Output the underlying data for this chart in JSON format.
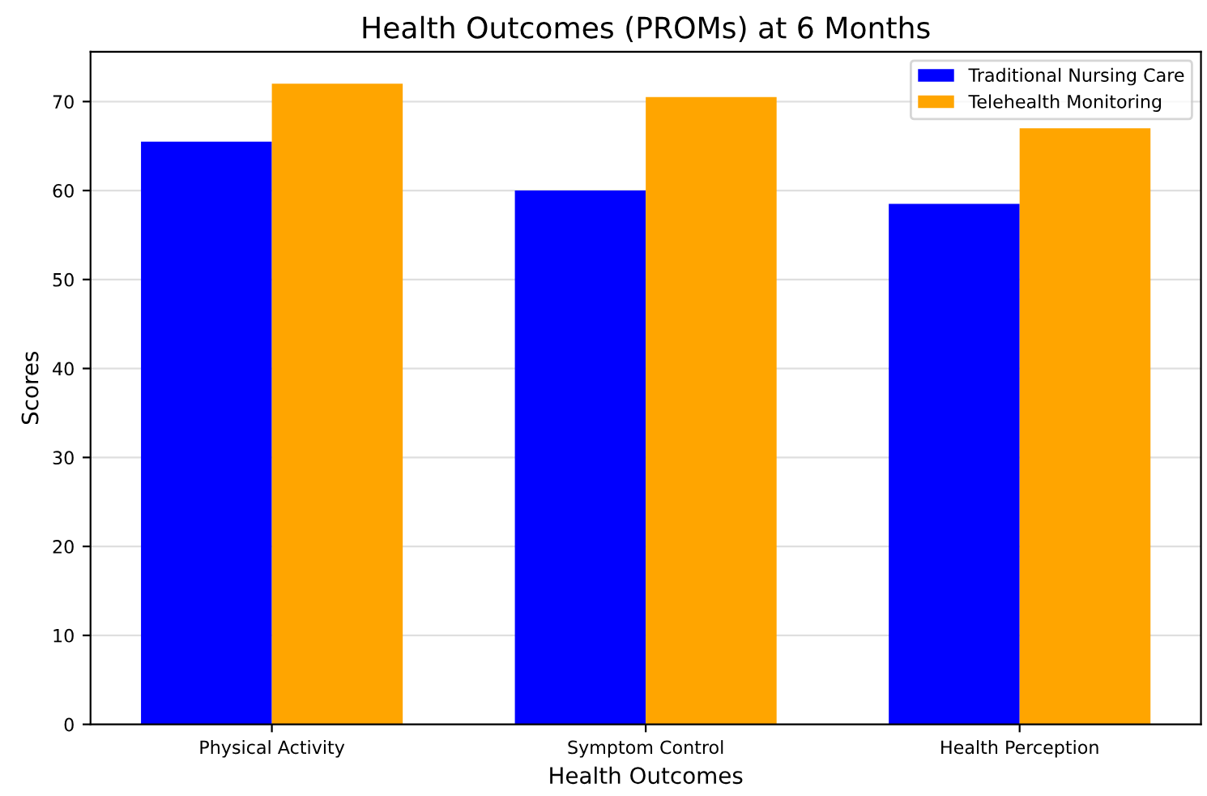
{
  "chart_data": {
    "type": "bar",
    "title": "Health Outcomes (PROMs) at 6 Months",
    "xlabel": "Health Outcomes",
    "ylabel": "Scores",
    "categories": [
      "Physical Activity",
      "Symptom Control",
      "Health Perception"
    ],
    "series": [
      {
        "name": "Traditional Nursing Care",
        "color": "#0000ff",
        "values": [
          65.5,
          60,
          58.5
        ]
      },
      {
        "name": "Telehealth Monitoring",
        "color": "#ffa500",
        "values": [
          72,
          70.5,
          67
        ]
      }
    ],
    "ylim": [
      0,
      75.6
    ],
    "yticks": [
      0,
      10,
      20,
      30,
      40,
      50,
      60,
      70
    ],
    "grid": "y",
    "legend": "top right"
  }
}
